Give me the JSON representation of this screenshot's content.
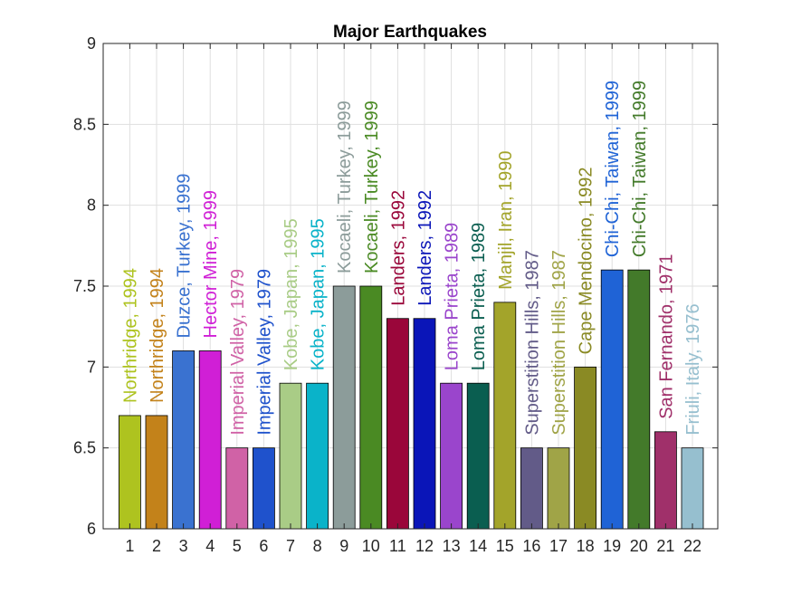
{
  "chart_data": {
    "type": "bar",
    "title": "Major Earthquakes",
    "xlabel": "",
    "ylabel": "",
    "ylim": [
      6,
      9
    ],
    "yticks": [
      6,
      6.5,
      7,
      7.5,
      8,
      8.5,
      9
    ],
    "ytick_labels": [
      "6",
      "6.5",
      "7",
      "7.5",
      "8",
      "8.5",
      "9"
    ],
    "grid": true,
    "categories": [
      "1",
      "2",
      "3",
      "4",
      "5",
      "6",
      "7",
      "8",
      "9",
      "10",
      "11",
      "12",
      "13",
      "14",
      "15",
      "16",
      "17",
      "18",
      "19",
      "20",
      "21",
      "22"
    ],
    "values": [
      6.7,
      6.7,
      7.1,
      7.1,
      6.5,
      6.5,
      6.9,
      6.9,
      7.5,
      7.5,
      7.3,
      7.3,
      6.9,
      6.9,
      7.4,
      6.5,
      6.5,
      7.0,
      7.6,
      7.6,
      6.6,
      6.5
    ],
    "labels": [
      "Northridge, 1994",
      "Northridge, 1994",
      "Duzce, Turkey, 1999",
      "Hector Mine, 1999",
      "Imperial Valley, 1979",
      "Imperial Valley, 1979",
      "Kobe, Japan, 1995",
      "Kobe, Japan, 1995",
      "Kocaeli, Turkey, 1999",
      "Kocaeli, Turkey, 1999",
      "Landers, 1992",
      "Landers, 1992",
      "Loma Prieta, 1989",
      "Loma Prieta, 1989",
      "Manjil, Iran, 1990",
      "Superstition Hills, 1987",
      "Superstition Hills, 1987",
      "Cape Mendocino, 1992",
      "Chi-Chi, Taiwan, 1999",
      "Chi-Chi, Taiwan, 1999",
      "San Fernando, 1971",
      "Friuli, Italy, 1976"
    ],
    "colors": [
      "#aec31f",
      "#c3821a",
      "#3a72d0",
      "#d01fd6",
      "#d062a6",
      "#1f52cc",
      "#a9cc86",
      "#0ab3c9",
      "#8c9c9a",
      "#4a8a23",
      "#9a063a",
      "#0a15b8",
      "#9a45cc",
      "#0a5e50",
      "#a3a42a",
      "#625b88",
      "#a0a447",
      "#8a8a24",
      "#1f63d6",
      "#437a2a",
      "#a0306a",
      "#96bfcf"
    ]
  }
}
